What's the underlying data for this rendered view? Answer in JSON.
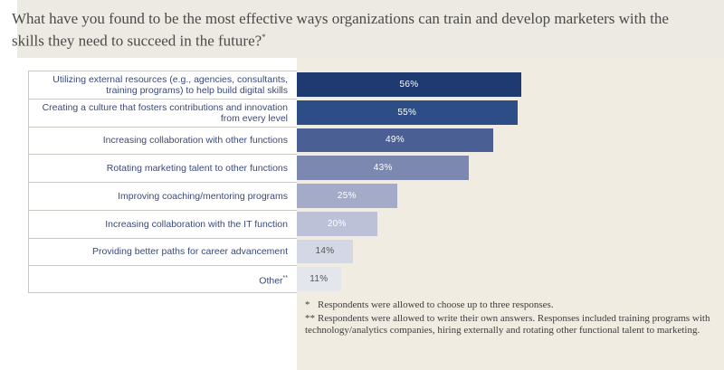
{
  "title": {
    "text": "What have you found to be the most effective ways organizations can train and develop marketers with the skills they need to succeed in the future?",
    "mark": "*"
  },
  "chart_data": {
    "type": "bar",
    "orientation": "horizontal",
    "categories": [
      "Utilizing external resources (e.g., agencies, consultants, training programs) to help build digital skills",
      "Creating a culture that fosters contributions and innovation from every level",
      "Increasing collaboration with other functions",
      "Rotating marketing talent to other functions",
      "Improving coaching/mentoring programs",
      "Increasing collaboration with the IT function",
      "Providing better paths for career advancement",
      "Other"
    ],
    "category_marks": [
      "",
      "",
      "",
      "",
      "",
      "",
      "",
      "**"
    ],
    "values": [
      56,
      55,
      49,
      43,
      25,
      20,
      14,
      11
    ],
    "value_labels": [
      "56%",
      "55%",
      "49%",
      "43%",
      "25%",
      "20%",
      "14%",
      "11%"
    ],
    "colors": [
      "#1f3a70",
      "#2c4d85",
      "#4a5f94",
      "#7d88b1",
      "#a4abc8",
      "#bcc1d8",
      "#d4d7e4",
      "#e4e6ee"
    ],
    "label_colors": [
      "#ffffff",
      "#ffffff",
      "#ffffff",
      "#ffffff",
      "#ffffff",
      "#ffffff",
      "#555555",
      "#555555"
    ],
    "xlim": [
      0,
      100
    ],
    "grid": false,
    "legend": "none"
  },
  "footnotes": [
    {
      "mark": "*",
      "text": "Respondents were allowed to choose up to three responses."
    },
    {
      "mark": "**",
      "text": "Respondents were allowed to write their own answers. Responses included training programs with technology/analytics companies, hiring externally and rotating other functional talent to marketing."
    }
  ]
}
